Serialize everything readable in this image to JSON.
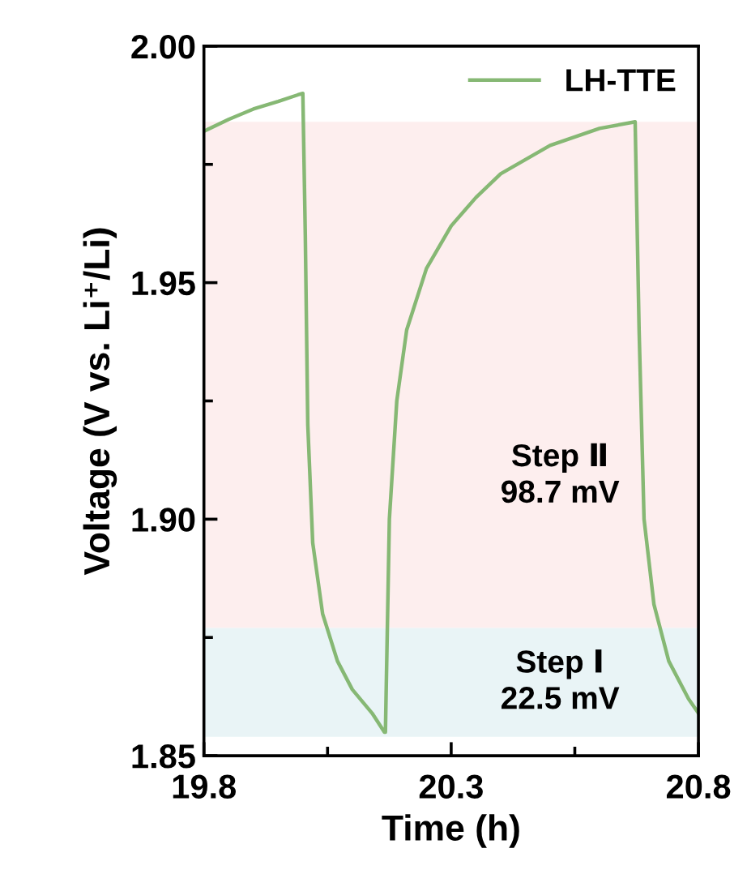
{
  "chart_data": {
    "type": "line",
    "xlabel": "Time (h)",
    "ylabel": "Voltage (V vs. Li⁺/Li)",
    "xlim": [
      19.8,
      20.8
    ],
    "xticks": [
      19.8,
      20.3,
      20.8
    ],
    "ylim": [
      1.85,
      2.0
    ],
    "yticks": [
      1.85,
      {
        "value": 1.9,
        "label": "1.90"
      },
      1.95,
      {
        "value": 2.0,
        "label": "2.00"
      }
    ],
    "legend": "top right",
    "grid": false,
    "bands": [
      {
        "axis": "y",
        "from": 1.877,
        "to": 1.984,
        "label": "Step Ⅱ\n98.7 mV",
        "color": "#fdeeee"
      },
      {
        "axis": "y",
        "from": 1.854,
        "to": 1.877,
        "label": "Step Ⅰ\n22.5 mV",
        "color": "#e9f4f6"
      }
    ],
    "series": [
      {
        "name": "LH-TTE",
        "color": "#86b874",
        "x": [
          19.8,
          19.85,
          19.9,
          19.95,
          19.99,
          20.0,
          20.005,
          20.01,
          20.02,
          20.04,
          20.07,
          20.1,
          20.14,
          20.165,
          20.167,
          20.175,
          20.19,
          20.21,
          20.25,
          20.3,
          20.35,
          20.4,
          20.5,
          20.6,
          20.672,
          20.68,
          20.69,
          20.71,
          20.74,
          20.78,
          20.8
        ],
        "values": [
          1.982,
          1.9845,
          1.9867,
          1.9883,
          1.9897,
          1.99,
          1.96,
          1.92,
          1.895,
          1.88,
          1.87,
          1.864,
          1.859,
          1.855,
          1.855,
          1.9,
          1.925,
          1.94,
          1.953,
          1.962,
          1.968,
          1.973,
          1.979,
          1.9826,
          1.984,
          1.94,
          1.9,
          1.882,
          1.87,
          1.862,
          1.859
        ]
      }
    ]
  }
}
